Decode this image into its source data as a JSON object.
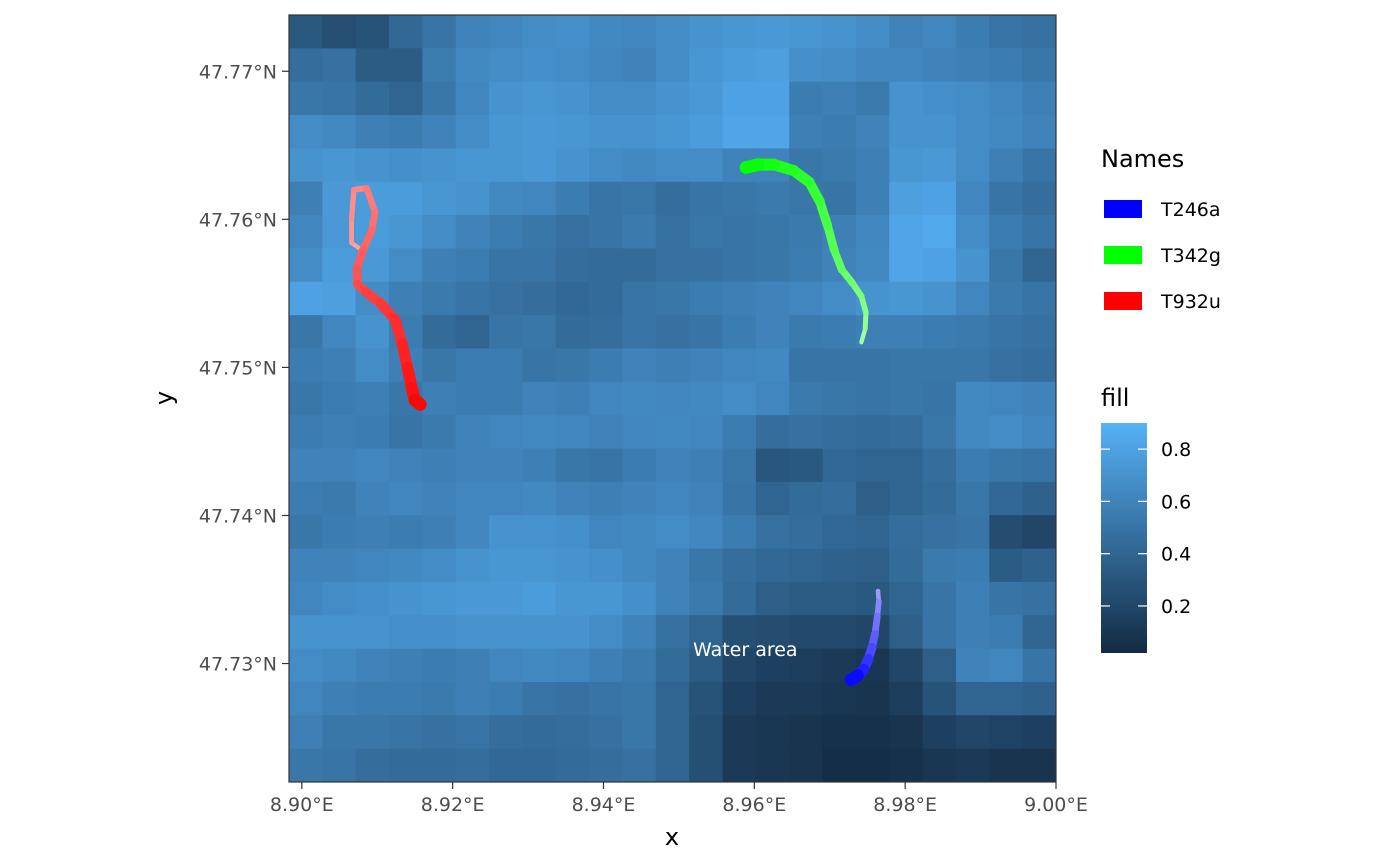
{
  "chart_data": {
    "type": "heatmap",
    "xlabel": "x",
    "ylabel": "y",
    "x_ticks": [
      {
        "value": 8.9,
        "label": "8.90°E"
      },
      {
        "value": 8.92,
        "label": "8.92°E"
      },
      {
        "value": 8.94,
        "label": "8.94°E"
      },
      {
        "value": 8.96,
        "label": "8.96°E"
      },
      {
        "value": 8.98,
        "label": "8.98°E"
      },
      {
        "value": 9.0,
        "label": "9.00°E"
      }
    ],
    "y_ticks": [
      {
        "value": 47.73,
        "label": "47.73°N"
      },
      {
        "value": 47.74,
        "label": "47.74°N"
      },
      {
        "value": 47.75,
        "label": "47.75°N"
      },
      {
        "value": 47.76,
        "label": "47.76°N"
      },
      {
        "value": 47.77,
        "label": "47.77°N"
      }
    ],
    "xlim": [
      8.8983,
      9.0
    ],
    "ylim": [
      47.722,
      47.7738
    ],
    "grid": false,
    "raster": {
      "x_range": [
        8.8983,
        9.0
      ],
      "y_range": [
        47.722,
        47.7738
      ],
      "cols": 23,
      "rows": 23,
      "values": [
        [
          0.32,
          0.25,
          0.28,
          0.42,
          0.5,
          0.6,
          0.62,
          0.66,
          0.68,
          0.64,
          0.62,
          0.66,
          0.7,
          0.72,
          0.74,
          0.72,
          0.7,
          0.66,
          0.6,
          0.62,
          0.56,
          0.5,
          0.48
        ],
        [
          0.46,
          0.48,
          0.34,
          0.34,
          0.55,
          0.64,
          0.66,
          0.68,
          0.66,
          0.62,
          0.6,
          0.66,
          0.72,
          0.76,
          0.78,
          0.68,
          0.66,
          0.62,
          0.62,
          0.6,
          0.58,
          0.56,
          0.52
        ],
        [
          0.52,
          0.5,
          0.44,
          0.4,
          0.52,
          0.62,
          0.7,
          0.72,
          0.7,
          0.66,
          0.66,
          0.7,
          0.74,
          0.8,
          0.8,
          0.56,
          0.58,
          0.54,
          0.7,
          0.68,
          0.66,
          0.62,
          0.58
        ],
        [
          0.66,
          0.64,
          0.58,
          0.56,
          0.6,
          0.66,
          0.72,
          0.74,
          0.72,
          0.7,
          0.7,
          0.72,
          0.76,
          0.82,
          0.82,
          0.58,
          0.56,
          0.6,
          0.7,
          0.7,
          0.66,
          0.64,
          0.6
        ],
        [
          0.7,
          0.72,
          0.7,
          0.68,
          0.7,
          0.72,
          0.72,
          0.74,
          0.7,
          0.66,
          0.64,
          0.66,
          0.66,
          0.6,
          0.6,
          0.52,
          0.54,
          0.58,
          0.72,
          0.74,
          0.66,
          0.58,
          0.5
        ],
        [
          0.58,
          0.74,
          0.76,
          0.76,
          0.72,
          0.7,
          0.64,
          0.62,
          0.56,
          0.5,
          0.52,
          0.46,
          0.5,
          0.52,
          0.54,
          0.52,
          0.5,
          0.58,
          0.78,
          0.8,
          0.62,
          0.5,
          0.46
        ],
        [
          0.62,
          0.74,
          0.76,
          0.72,
          0.66,
          0.6,
          0.56,
          0.52,
          0.48,
          0.5,
          0.54,
          0.48,
          0.52,
          0.5,
          0.52,
          0.54,
          0.58,
          0.62,
          0.82,
          0.84,
          0.66,
          0.56,
          0.5
        ],
        [
          0.66,
          0.76,
          0.74,
          0.66,
          0.58,
          0.56,
          0.5,
          0.5,
          0.46,
          0.44,
          0.44,
          0.48,
          0.48,
          0.5,
          0.52,
          0.56,
          0.6,
          0.64,
          0.82,
          0.8,
          0.7,
          0.52,
          0.4
        ],
        [
          0.8,
          0.78,
          0.66,
          0.58,
          0.54,
          0.5,
          0.48,
          0.46,
          0.42,
          0.44,
          0.5,
          0.52,
          0.56,
          0.58,
          0.6,
          0.62,
          0.66,
          0.7,
          0.72,
          0.7,
          0.62,
          0.54,
          0.5
        ],
        [
          0.52,
          0.62,
          0.7,
          0.56,
          0.44,
          0.4,
          0.5,
          0.52,
          0.44,
          0.46,
          0.5,
          0.48,
          0.5,
          0.56,
          0.6,
          0.54,
          0.56,
          0.58,
          0.58,
          0.56,
          0.54,
          0.5,
          0.48
        ],
        [
          0.56,
          0.58,
          0.66,
          0.58,
          0.52,
          0.56,
          0.56,
          0.5,
          0.52,
          0.56,
          0.6,
          0.58,
          0.6,
          0.62,
          0.64,
          0.5,
          0.5,
          0.5,
          0.52,
          0.52,
          0.52,
          0.48,
          0.46
        ],
        [
          0.52,
          0.56,
          0.58,
          0.52,
          0.58,
          0.56,
          0.56,
          0.6,
          0.58,
          0.62,
          0.64,
          0.62,
          0.64,
          0.66,
          0.62,
          0.54,
          0.52,
          0.5,
          0.52,
          0.5,
          0.64,
          0.62,
          0.6
        ],
        [
          0.56,
          0.58,
          0.56,
          0.5,
          0.54,
          0.6,
          0.62,
          0.64,
          0.62,
          0.6,
          0.62,
          0.64,
          0.62,
          0.56,
          0.46,
          0.48,
          0.46,
          0.44,
          0.46,
          0.52,
          0.64,
          0.66,
          0.62
        ],
        [
          0.6,
          0.6,
          0.62,
          0.6,
          0.58,
          0.6,
          0.6,
          0.58,
          0.52,
          0.5,
          0.56,
          0.6,
          0.58,
          0.52,
          0.3,
          0.32,
          0.42,
          0.4,
          0.4,
          0.46,
          0.56,
          0.52,
          0.5
        ],
        [
          0.56,
          0.54,
          0.6,
          0.62,
          0.6,
          0.62,
          0.62,
          0.64,
          0.6,
          0.58,
          0.6,
          0.62,
          0.6,
          0.5,
          0.4,
          0.44,
          0.46,
          0.36,
          0.4,
          0.44,
          0.52,
          0.42,
          0.38
        ],
        [
          0.52,
          0.56,
          0.58,
          0.56,
          0.58,
          0.62,
          0.7,
          0.7,
          0.68,
          0.62,
          0.64,
          0.66,
          0.62,
          0.56,
          0.48,
          0.46,
          0.42,
          0.4,
          0.46,
          0.48,
          0.5,
          0.24,
          0.2
        ],
        [
          0.6,
          0.6,
          0.62,
          0.64,
          0.66,
          0.7,
          0.72,
          0.72,
          0.7,
          0.68,
          0.64,
          0.6,
          0.52,
          0.46,
          0.42,
          0.4,
          0.38,
          0.36,
          0.44,
          0.54,
          0.56,
          0.34,
          0.38
        ],
        [
          0.62,
          0.66,
          0.68,
          0.7,
          0.72,
          0.74,
          0.74,
          0.76,
          0.72,
          0.72,
          0.68,
          0.6,
          0.54,
          0.44,
          0.36,
          0.34,
          0.34,
          0.32,
          0.4,
          0.5,
          0.58,
          0.5,
          0.48
        ],
        [
          0.7,
          0.7,
          0.7,
          0.68,
          0.68,
          0.7,
          0.7,
          0.7,
          0.7,
          0.66,
          0.6,
          0.48,
          0.4,
          0.26,
          0.24,
          0.22,
          0.22,
          0.2,
          0.36,
          0.5,
          0.58,
          0.56,
          0.4
        ],
        [
          0.66,
          0.64,
          0.6,
          0.58,
          0.56,
          0.58,
          0.62,
          0.64,
          0.62,
          0.58,
          0.54,
          0.44,
          0.34,
          0.2,
          0.16,
          0.14,
          0.12,
          0.1,
          0.2,
          0.36,
          0.6,
          0.62,
          0.5
        ],
        [
          0.62,
          0.58,
          0.56,
          0.56,
          0.54,
          0.58,
          0.56,
          0.5,
          0.48,
          0.5,
          0.52,
          0.4,
          0.28,
          0.16,
          0.12,
          0.12,
          0.1,
          0.08,
          0.14,
          0.28,
          0.4,
          0.4,
          0.38
        ],
        [
          0.58,
          0.52,
          0.52,
          0.5,
          0.48,
          0.5,
          0.46,
          0.44,
          0.46,
          0.48,
          0.52,
          0.4,
          0.26,
          0.12,
          0.1,
          0.08,
          0.06,
          0.06,
          0.08,
          0.16,
          0.2,
          0.18,
          0.16
        ],
        [
          0.52,
          0.5,
          0.46,
          0.44,
          0.44,
          0.46,
          0.42,
          0.42,
          0.44,
          0.46,
          0.48,
          0.4,
          0.26,
          0.12,
          0.1,
          0.08,
          0.04,
          0.04,
          0.06,
          0.1,
          0.12,
          0.08,
          0.08
        ]
      ]
    },
    "tracks": [
      {
        "name": "T246a",
        "color": "#0000ff",
        "points": [
          [
            8.9764,
            47.7349
          ],
          [
            8.9765,
            47.7342
          ],
          [
            8.9763,
            47.7332
          ],
          [
            8.976,
            47.732
          ],
          [
            8.9756,
            47.7311
          ],
          [
            8.9751,
            47.7303
          ],
          [
            8.9745,
            47.7296
          ],
          [
            8.9737,
            47.7292
          ],
          [
            8.9728,
            47.7289
          ]
        ]
      },
      {
        "name": "T342g",
        "color": "#00ff00",
        "points": [
          [
            8.9742,
            47.7517
          ],
          [
            8.9747,
            47.7526
          ],
          [
            8.9748,
            47.7537
          ],
          [
            8.9742,
            47.7548
          ],
          [
            8.973,
            47.7557
          ],
          [
            8.9716,
            47.7566
          ],
          [
            8.9706,
            47.7579
          ],
          [
            8.9697,
            47.7596
          ],
          [
            8.9687,
            47.7612
          ],
          [
            8.9673,
            47.7625
          ],
          [
            8.9652,
            47.7633
          ],
          [
            8.9626,
            47.7637
          ],
          [
            8.9605,
            47.7637
          ],
          [
            8.9589,
            47.7635
          ]
        ]
      },
      {
        "name": "T932u",
        "color": "#ff0000",
        "points": [
          [
            8.9083,
            47.7578
          ],
          [
            8.9066,
            47.7584
          ],
          [
            8.9066,
            47.76
          ],
          [
            8.9069,
            47.762
          ],
          [
            8.9086,
            47.7621
          ],
          [
            8.9097,
            47.7605
          ],
          [
            8.9093,
            47.7593
          ],
          [
            8.9081,
            47.7579
          ],
          [
            8.9073,
            47.7567
          ],
          [
            8.9074,
            47.7556
          ],
          [
            8.9085,
            47.7551
          ],
          [
            8.9105,
            47.7543
          ],
          [
            8.9124,
            47.7532
          ],
          [
            8.9133,
            47.7516
          ],
          [
            8.914,
            47.75
          ],
          [
            8.9146,
            47.7486
          ],
          [
            8.915,
            47.7478
          ],
          [
            8.9157,
            47.7475
          ]
        ]
      }
    ],
    "annotations": [
      {
        "text": "Water area",
        "x": 8.9588,
        "y": 47.7305
      }
    ],
    "legend_names": {
      "title": "Names",
      "entries": [
        {
          "label": "T246a",
          "color": "#0000ff"
        },
        {
          "label": "T342g",
          "color": "#00ff00"
        },
        {
          "label": "T932u",
          "color": "#ff0000"
        }
      ]
    },
    "legend_fill": {
      "title": "fill",
      "range": [
        0.02,
        0.9
      ],
      "low_color": "#132b43",
      "high_color": "#56b1f7",
      "ticks": [
        {
          "value": 0.2,
          "label": "0.2"
        },
        {
          "value": 0.4,
          "label": "0.4"
        },
        {
          "value": 0.6,
          "label": "0.6"
        },
        {
          "value": 0.8,
          "label": "0.8"
        }
      ]
    }
  }
}
